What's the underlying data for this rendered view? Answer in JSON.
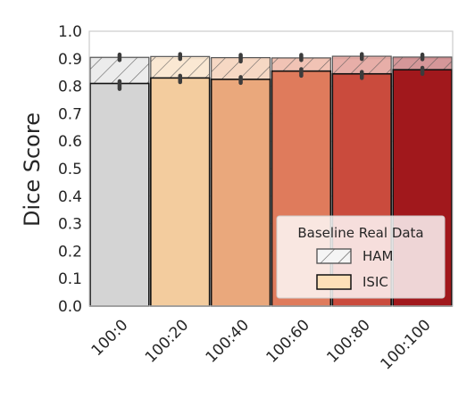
{
  "chart_data": {
    "type": "bar",
    "title": "",
    "xlabel": "",
    "ylabel": "Dice Score",
    "ylim": [
      0,
      1.0
    ],
    "yticks": [
      "0.0",
      "0.1",
      "0.2",
      "0.3",
      "0.4",
      "0.5",
      "0.6",
      "0.7",
      "0.8",
      "0.9",
      "1.0"
    ],
    "categories": [
      "100:0",
      "100:20",
      "100:40",
      "100:60",
      "100:80",
      "100:100"
    ],
    "colors": [
      "#d4d4d4",
      "#f3cc9e",
      "#eaa87c",
      "#df7b5c",
      "#ca4b3d",
      "#a1181c"
    ],
    "series": [
      {
        "name": "HAM",
        "hatched": true,
        "values": [
          0.905,
          0.908,
          0.904,
          0.903,
          0.909,
          0.906
        ],
        "error_bars": [
          [
            0.895,
            0.915
          ],
          [
            0.899,
            0.917
          ],
          [
            0.89,
            0.914
          ],
          [
            0.895,
            0.914
          ],
          [
            0.899,
            0.917
          ],
          [
            0.898,
            0.915
          ]
        ]
      },
      {
        "name": "ISIC",
        "hatched": false,
        "values": [
          0.81,
          0.83,
          0.825,
          0.855,
          0.845,
          0.86
        ],
        "error_bars": [
          [
            0.79,
            0.818
          ],
          [
            0.815,
            0.838
          ],
          [
            0.812,
            0.833
          ],
          [
            0.838,
            0.862
          ],
          [
            0.83,
            0.852
          ],
          [
            0.845,
            0.867
          ]
        ]
      }
    ],
    "legend": {
      "title": "Baseline Real Data",
      "placement": "lower-right",
      "entries": [
        "HAM",
        "ISIC"
      ]
    },
    "grid": true
  }
}
